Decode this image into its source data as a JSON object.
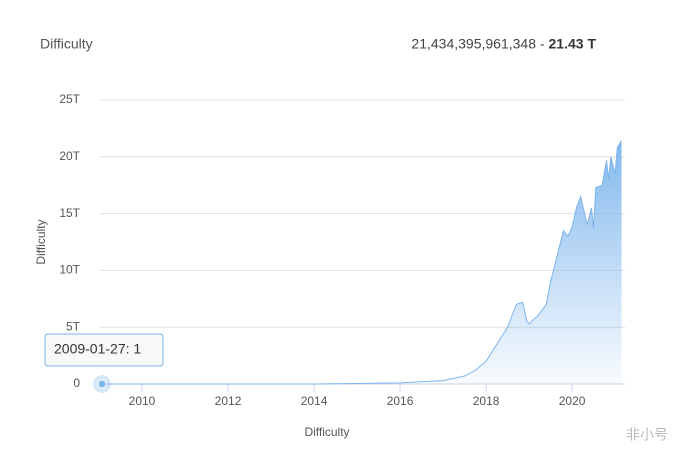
{
  "chart_data": {
    "type": "area",
    "title": "Difficulty",
    "current_value": "21,434,395,961,348",
    "current_short": "21.43 T",
    "ylabel": "Difficulty",
    "xlabel": "Difficulty",
    "tooltip": "2009-01-27: 1",
    "watermark": "非小号",
    "color": "#7cb5ec",
    "xlim": [
      2009,
      2021.23
    ],
    "xticks": [
      2010,
      2012,
      2014,
      2016,
      2018,
      2020
    ],
    "ylim": [
      0,
      25
    ],
    "yticks": [
      0,
      {
        "value": 5,
        "label": "5T"
      },
      {
        "value": 10,
        "label": "10T"
      },
      {
        "value": 15,
        "label": "15T"
      },
      {
        "value": 20,
        "label": "20T"
      },
      {
        "value": 25,
        "label": "25T"
      }
    ],
    "grid": true,
    "series": [
      {
        "name": "Difficulty",
        "x": [
          2009.07,
          2010,
          2012,
          2014,
          2015,
          2016,
          2016.5,
          2017,
          2017.5,
          2017.75,
          2018,
          2018.25,
          2018.5,
          2018.7,
          2018.85,
          2018.95,
          2019.0,
          2019.2,
          2019.4,
          2019.5,
          2019.7,
          2019.8,
          2019.9,
          2020.0,
          2020.1,
          2020.2,
          2020.35,
          2020.45,
          2020.5,
          2020.55,
          2020.7,
          2020.8,
          2020.85,
          2020.9,
          2021.0,
          2021.05,
          2021.15
        ],
        "values": [
          0,
          0,
          2e-06,
          0.0002,
          0.04,
          0.1,
          0.2,
          0.3,
          0.7,
          1.2,
          2.0,
          3.5,
          5.0,
          7.0,
          7.2,
          5.5,
          5.3,
          6.0,
          7.0,
          9.0,
          12.0,
          13.5,
          13.0,
          13.8,
          15.5,
          16.5,
          14.0,
          15.5,
          13.7,
          17.3,
          17.5,
          19.7,
          18.0,
          20.0,
          18.5,
          20.8,
          21.43
        ]
      }
    ]
  }
}
